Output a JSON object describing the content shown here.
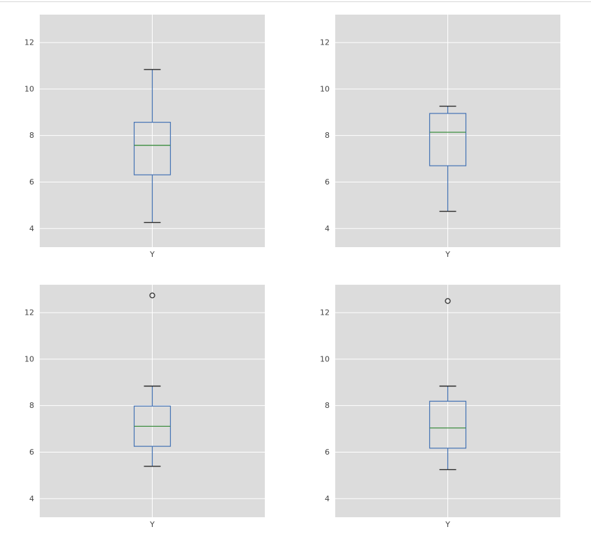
{
  "page": {
    "background": "#ffffff",
    "top_border_color": "#d8d8d8"
  },
  "style": {
    "plot_bg": "#dcdcdc",
    "grid_color": "#ffffff",
    "box_color": "#4472b4",
    "median_color": "#3e8e41",
    "cap_color": "#2b2b2b",
    "flier_color": "#2b2b2b",
    "tick_label_color": "#444444"
  },
  "chart_data": [
    {
      "type": "box",
      "position": "top-left",
      "x_label": "Y",
      "ylim": [
        3.2,
        13.2
      ],
      "yticks": [
        4,
        6,
        8,
        10,
        12
      ],
      "grid": true,
      "box": {
        "whisker_low": 4.26,
        "q1": 6.31,
        "median": 7.58,
        "q3": 8.57,
        "whisker_high": 10.84,
        "outliers": []
      }
    },
    {
      "type": "box",
      "position": "top-right",
      "x_label": "Y",
      "ylim": [
        3.2,
        13.2
      ],
      "yticks": [
        4,
        6,
        8,
        10,
        12
      ],
      "grid": true,
      "box": {
        "whisker_low": 4.74,
        "q1": 6.7,
        "median": 8.14,
        "q3": 8.95,
        "whisker_high": 9.26,
        "outliers": []
      }
    },
    {
      "type": "box",
      "position": "bottom-left",
      "x_label": "Y",
      "ylim": [
        3.2,
        13.2
      ],
      "yticks": [
        4,
        6,
        8,
        10,
        12
      ],
      "grid": true,
      "box": {
        "whisker_low": 5.39,
        "q1": 6.25,
        "median": 7.11,
        "q3": 7.98,
        "whisker_high": 8.84,
        "outliers": [
          12.74
        ]
      }
    },
    {
      "type": "box",
      "position": "bottom-right",
      "x_label": "Y",
      "ylim": [
        3.2,
        13.2
      ],
      "yticks": [
        4,
        6,
        8,
        10,
        12
      ],
      "grid": true,
      "box": {
        "whisker_low": 5.25,
        "q1": 6.17,
        "median": 7.04,
        "q3": 8.19,
        "whisker_high": 8.84,
        "outliers": [
          12.5
        ]
      }
    }
  ]
}
